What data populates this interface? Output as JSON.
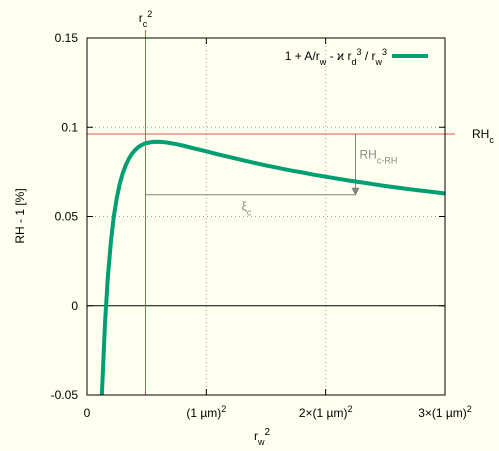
{
  "chart_data": {
    "type": "line",
    "title": "",
    "xlabel": "r_w^2",
    "ylabel": "RH - 1 [%]",
    "xlim": [
      0,
      3
    ],
    "ylim": [
      -0.05,
      0.15
    ],
    "xticks": [
      {
        "value": 0,
        "label": "0"
      },
      {
        "value": 1,
        "label": "(1 µm)",
        "sup": "2"
      },
      {
        "value": 2,
        "label": "2×(1 µm)",
        "sup": "2"
      },
      {
        "value": 3,
        "label": "3×(1 µm)",
        "sup": "2"
      }
    ],
    "yticks": [
      {
        "value": -0.05,
        "label": "-0.05"
      },
      {
        "value": 0,
        "label": "0"
      },
      {
        "value": 0.05,
        "label": "0.05"
      },
      {
        "value": 0.1,
        "label": "0.1"
      },
      {
        "value": 0.15,
        "label": "0.15"
      }
    ],
    "grid": true,
    "legend_position": "top-right",
    "series": [
      {
        "name": "1 + A/r_w - ϰ r_d^3 / r_w^3",
        "color": "#009e73",
        "x": [
          0.125,
          0.15,
          0.175,
          0.2,
          0.225,
          0.25,
          0.275,
          0.3,
          0.325,
          0.35,
          0.375,
          0.4,
          0.425,
          0.45,
          0.475,
          0.5,
          0.55,
          0.6,
          0.65,
          0.7,
          0.75,
          0.8,
          0.9,
          1.0,
          1.1,
          1.2,
          1.3,
          1.4,
          1.5,
          1.6,
          1.7,
          1.8,
          1.9,
          2.0,
          2.1,
          2.2,
          2.3,
          2.4,
          2.5,
          2.6,
          2.7,
          2.8,
          2.9,
          3.0
        ],
        "y": [
          -0.0495,
          -0.0108,
          0.0165,
          0.0359,
          0.05,
          0.0605,
          0.0684,
          0.0743,
          0.0788,
          0.0823,
          0.085,
          0.087,
          0.0886,
          0.0897,
          0.0906,
          0.0912,
          0.0918,
          0.0919,
          0.0916,
          0.0911,
          0.0905,
          0.0898,
          0.0881,
          0.0865,
          0.0848,
          0.0832,
          0.0816,
          0.0801,
          0.0786,
          0.0773,
          0.0759,
          0.0747,
          0.0734,
          0.0723,
          0.0712,
          0.0701,
          0.0691,
          0.0681,
          0.0671,
          0.0662,
          0.0653,
          0.0645,
          0.0637,
          0.0629
        ]
      }
    ],
    "annotations": {
      "rc2_label": "r_c^2",
      "rc2_x": 0.49,
      "rhc_label": "RH_c",
      "rhc_y": 0.0962,
      "rhc_minus_rh_label": "RH_c-RH",
      "rhc_minus_rh_x": 2.25,
      "rhc_minus_rh_y_end": 0.0622,
      "xi_label": "ξ_c",
      "xi_y": 0.0622
    }
  }
}
